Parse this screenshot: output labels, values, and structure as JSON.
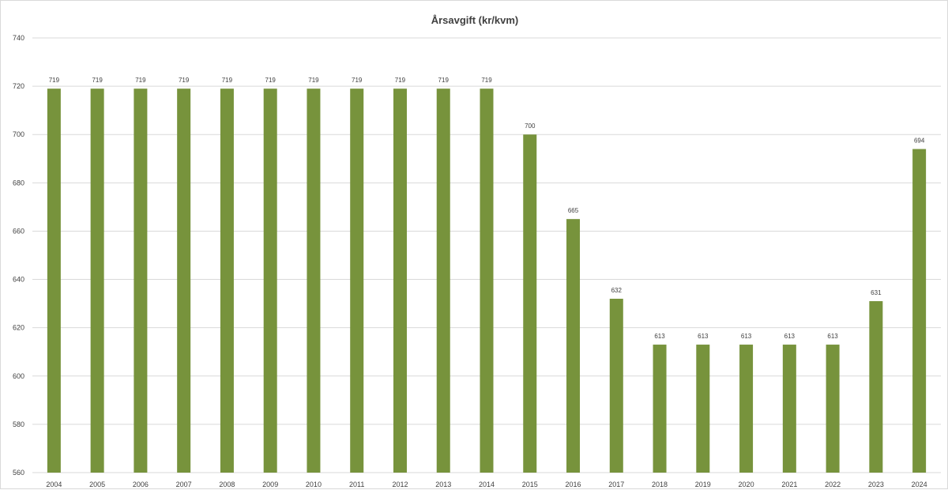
{
  "chart_data": {
    "type": "bar",
    "title": "Årsavgift (kr/kvm)",
    "xlabel": "",
    "ylabel": "",
    "categories": [
      "2004",
      "2005",
      "2006",
      "2007",
      "2008",
      "2009",
      "2010",
      "2011",
      "2012",
      "2013",
      "2014",
      "2015",
      "2016",
      "2017",
      "2018",
      "2019",
      "2020",
      "2021",
      "2022",
      "2023",
      "2024"
    ],
    "values": [
      719,
      719,
      719,
      719,
      719,
      719,
      719,
      719,
      719,
      719,
      719,
      700,
      665,
      632,
      613,
      613,
      613,
      613,
      613,
      631,
      694
    ],
    "data_labels": [
      "719",
      "719",
      "719",
      "719",
      "719",
      "719",
      "719",
      "719",
      "719",
      "719",
      "719",
      "700",
      "665",
      "632",
      "613",
      "613",
      "613",
      "613",
      "613",
      "631",
      "694"
    ],
    "ylim": [
      560,
      740
    ],
    "y_ticks": [
      560,
      580,
      600,
      620,
      640,
      660,
      680,
      700,
      720,
      740
    ],
    "y_tick_labels": [
      "560",
      "580",
      "600",
      "620",
      "640",
      "660",
      "680",
      "700",
      "720",
      "740"
    ],
    "grid": true,
    "legend": "none",
    "colors": {
      "bar": "#77933c",
      "grid": "#d9d9d9",
      "text": "#404040"
    }
  }
}
